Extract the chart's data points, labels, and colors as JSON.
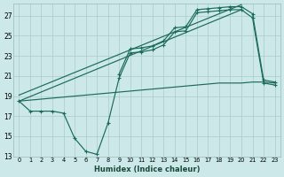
{
  "bg_color": "#cce8e8",
  "grid_color": "#aacccc",
  "line_color": "#1a6b5a",
  "xlabel": "Humidex (Indice chaleur)",
  "xlim": [
    -0.5,
    23.5
  ],
  "ylim": [
    13,
    28.2
  ],
  "yticks": [
    13,
    15,
    17,
    19,
    21,
    23,
    25,
    27
  ],
  "xticks": [
    0,
    1,
    2,
    3,
    4,
    5,
    6,
    7,
    8,
    9,
    10,
    11,
    12,
    13,
    14,
    15,
    16,
    17,
    18,
    19,
    20,
    21,
    22,
    23
  ],
  "zigzag1_x": [
    0,
    1,
    2,
    3,
    4,
    5,
    6,
    7,
    8,
    9,
    10,
    11,
    12,
    13,
    14,
    15,
    16,
    17,
    18,
    19,
    20,
    21,
    22,
    23
  ],
  "zigzag1_y": [
    18.5,
    17.5,
    17.5,
    17.5,
    17.3,
    14.8,
    13.5,
    13.2,
    16.3,
    20.8,
    23.3,
    23.4,
    23.6,
    24.1,
    25.4,
    25.5,
    27.3,
    27.4,
    27.5,
    27.6,
    27.6,
    26.8,
    20.3,
    20.1
  ],
  "zigzag2_x": [
    9,
    10,
    11,
    12,
    13,
    14,
    15,
    16,
    17,
    18,
    19,
    20,
    21,
    22,
    23
  ],
  "zigzag2_y": [
    21.2,
    23.7,
    23.8,
    24.0,
    24.5,
    25.8,
    25.9,
    27.6,
    27.7,
    27.8,
    27.9,
    27.9,
    27.2,
    20.6,
    20.4
  ],
  "trend1_x": [
    0,
    20
  ],
  "trend1_y": [
    18.5,
    27.6
  ],
  "trend2_x": [
    0,
    20
  ],
  "trend2_y": [
    19.1,
    28.1
  ],
  "flat_x": [
    0,
    1,
    2,
    3,
    4,
    5,
    6,
    7,
    8,
    9,
    10,
    11,
    12,
    13,
    14,
    15,
    16,
    17,
    18,
    19,
    20,
    21,
    22,
    23
  ],
  "flat_y": [
    18.5,
    18.6,
    18.7,
    18.8,
    18.9,
    19.0,
    19.1,
    19.2,
    19.3,
    19.4,
    19.5,
    19.6,
    19.7,
    19.8,
    19.9,
    20.0,
    20.1,
    20.2,
    20.3,
    20.3,
    20.3,
    20.4,
    20.4,
    20.3
  ]
}
